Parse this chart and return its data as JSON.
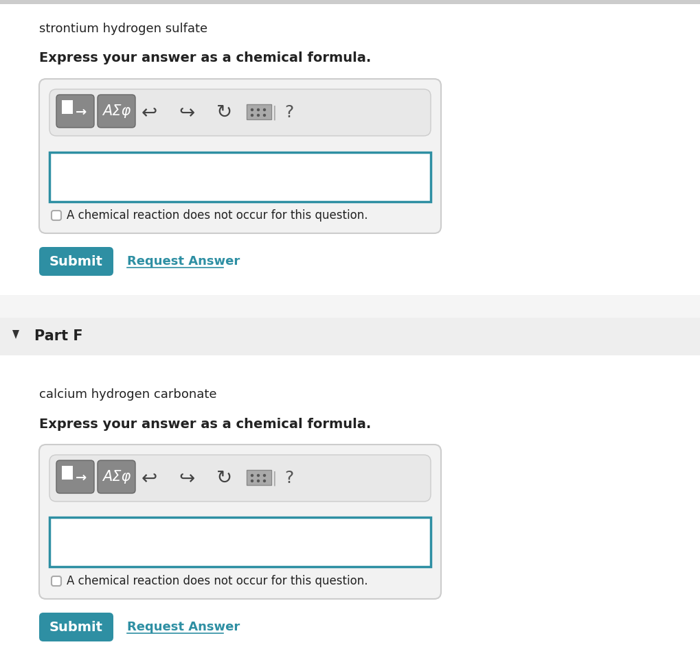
{
  "bg_color": "#f5f5f5",
  "white": "#ffffff",
  "part_f_bg": "#eeeeee",
  "teal_btn": "#2e8fa3",
  "teal_link": "#2e8fa3",
  "border_teal": "#2e8fa3",
  "border_light": "#cccccc",
  "text_dark": "#222222",
  "text_gray": "#555555",
  "toolbar_bg": "#e8e8e8",
  "icon_bg": "#7a7a7a",
  "part1_subtitle": "strontium hydrogen sulfate",
  "part1_instruction": "Express your answer as a chemical formula.",
  "part1_checkbox_text": "A chemical reaction does not occur for this question.",
  "part2_label": "Part F",
  "part2_subtitle": "calcium hydrogen carbonate",
  "part2_instruction": "Express your answer as a chemical formula.",
  "part2_checkbox_text": "A chemical reaction does not occur for this question.",
  "submit_text": "Submit",
  "request_text": "Request Answer",
  "toolbar_symbols": "ΑΣφ",
  "question_mark": "?"
}
